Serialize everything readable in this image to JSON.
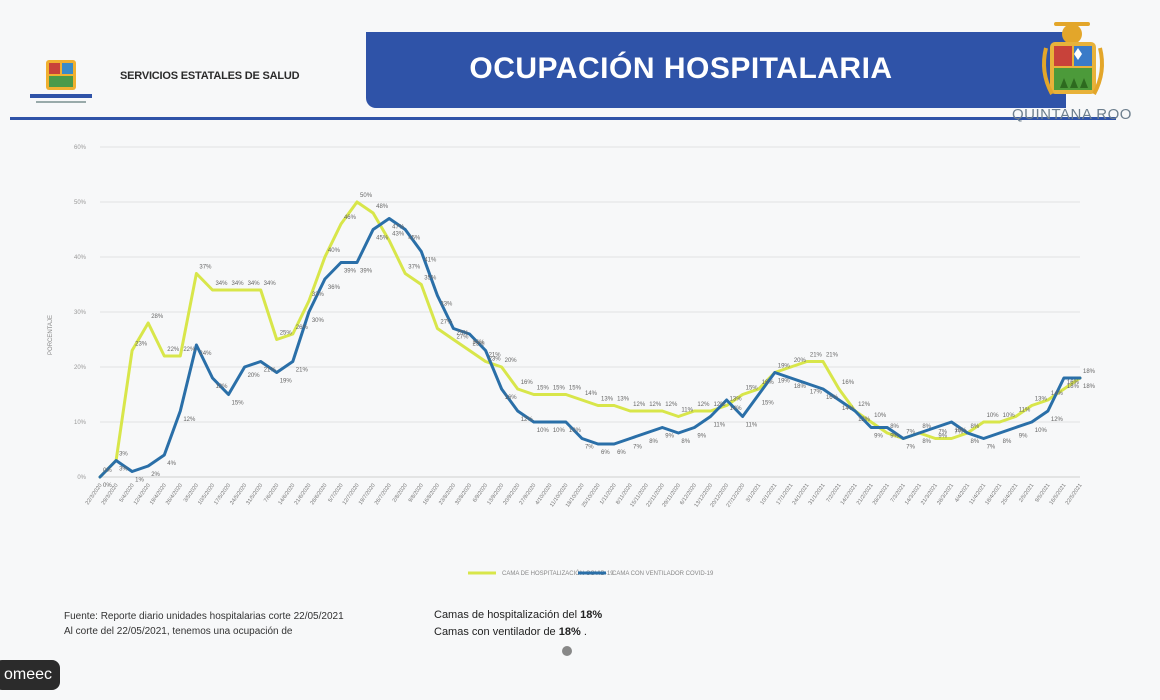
{
  "header": {
    "department": "SERVICIOS ESTATALES DE SALUD",
    "title": "OCUPACIÓN HOSPITALARIA",
    "state_name": "QUINTANA ROO",
    "brand_color": "#2f53a8"
  },
  "footer": {
    "source_line": "Fuente: Reporte diario unidades hospitalarias corte 22/05/2021",
    "cut_line": "Al corte del 22/05/2021, tenemos una ocupación de",
    "summary_1_prefix": "Camas de hospitalización del ",
    "summary_1_value": "18%",
    "summary_2_prefix": "Camas con ventilador de ",
    "summary_2_value": "18%",
    "summary_2_suffix": " ."
  },
  "overlay_tag": "omeec",
  "chart_data": {
    "type": "line",
    "ylabel": "PORCENTAJE",
    "ylim": [
      0,
      60
    ],
    "yticks": [
      "0%",
      "10%",
      "20%",
      "30%",
      "40%",
      "50%",
      "60%"
    ],
    "grid": true,
    "legend_position": "bottom",
    "x": [
      "22/3/2020",
      "29/3/2020",
      "5/4/2020",
      "12/4/2020",
      "19/4/2020",
      "26/4/2020",
      "3/5/2020",
      "10/5/2020",
      "17/5/2020",
      "24/5/2020",
      "31/5/2020",
      "7/6/2020",
      "14/6/2020",
      "21/6/2020",
      "28/6/2020",
      "5/7/2020",
      "12/7/2020",
      "19/7/2020",
      "26/7/2020",
      "2/8/2020",
      "9/8/2020",
      "16/8/2020",
      "23/8/2020",
      "30/8/2020",
      "6/9/2020",
      "13/9/2020",
      "20/9/2020",
      "27/9/2020",
      "4/10/2020",
      "11/10/2020",
      "18/10/2020",
      "25/10/2020",
      "1/11/2020",
      "8/11/2020",
      "15/11/2020",
      "22/11/2020",
      "29/11/2020",
      "6/12/2020",
      "13/12/2020",
      "20/12/2020",
      "27/12/2020",
      "3/1/2021",
      "10/1/2021",
      "17/1/2021",
      "24/1/2021",
      "31/1/2021",
      "7/2/2021",
      "14/2/2021",
      "21/2/2021",
      "28/2/2021",
      "7/3/2021",
      "14/3/2021",
      "21/3/2021",
      "28/3/2021",
      "4/4/2021",
      "11/4/2021",
      "18/4/2021",
      "25/4/2021",
      "2/5/2021",
      "9/5/2021",
      "16/5/2021",
      "22/5/2021"
    ],
    "series": [
      {
        "name": "CAMA DE HOSPITALIZACIÓN COVID-19",
        "color": "#d8e64a",
        "values": [
          0,
          3,
          23,
          28,
          22,
          22,
          37,
          34,
          34,
          34,
          34,
          25,
          26,
          32,
          40,
          46,
          50,
          48,
          43,
          37,
          35,
          27,
          25,
          23,
          21,
          20,
          16,
          15,
          15,
          15,
          14,
          13,
          13,
          12,
          12,
          12,
          11,
          12,
          12,
          13,
          15,
          16,
          19,
          20,
          21,
          21,
          16,
          12,
          10,
          8,
          7,
          8,
          7,
          7,
          8,
          10,
          10,
          11,
          13,
          14,
          16,
          18
        ],
        "labels": [
          "0%",
          "3%",
          "23%",
          "28%",
          "22%",
          "22%",
          "37%",
          "34%",
          "34%",
          "34%",
          "34%",
          "25%",
          "26%",
          "32%",
          "40%",
          "46%",
          "50%",
          "48%",
          "43%",
          "37%",
          "35%",
          "27%",
          "25%",
          "23%",
          "21%",
          "20%",
          "16%",
          "15%",
          "15%",
          "15%",
          "14%",
          "13%",
          "13%",
          "12%",
          "12%",
          "12%",
          "11%",
          "12%",
          "12%",
          "13%",
          "15%",
          "16%",
          "19%",
          "20%",
          "21%",
          "21%",
          "16%",
          "12%",
          "10%",
          "8%",
          "7%",
          "8%",
          "7%",
          "7%",
          "8%",
          "10%",
          "10%",
          "11%",
          "13%",
          "14%",
          "16%",
          "18%"
        ]
      },
      {
        "name": "CAMA CON VENTILADOR COVID-19",
        "color": "#2a6fa8",
        "values": [
          0,
          3,
          1,
          2,
          4,
          12,
          24,
          18,
          15,
          20,
          21,
          19,
          21,
          30,
          36,
          39,
          39,
          45,
          47,
          45,
          41,
          33,
          27,
          26,
          23,
          16,
          12,
          10,
          10,
          10,
          7,
          6,
          6,
          7,
          8,
          9,
          8,
          9,
          11,
          14,
          11,
          15,
          19,
          18,
          17,
          16,
          14,
          12,
          9,
          9,
          7,
          8,
          9,
          10,
          8,
          7,
          8,
          9,
          10,
          12,
          18,
          18
        ],
        "labels": [
          "0%",
          "3%",
          "1%",
          "2%",
          "4%",
          "12%",
          "24%",
          "18%",
          "15%",
          "20%",
          "21%",
          "19%",
          "21%",
          "30%",
          "36%",
          "39%",
          "39%",
          "45%",
          "47%",
          "45%",
          "41%",
          "33%",
          "27%",
          "26%",
          "23%",
          "16%",
          "12%",
          "10%",
          "10%",
          "10%",
          "7%",
          "6%",
          "6%",
          "7%",
          "8%",
          "9%",
          "8%",
          "9%",
          "11%",
          "14%",
          "11%",
          "15%",
          "19%",
          "18%",
          "17%",
          "16%",
          "14%",
          "12%",
          "9%",
          "9%",
          "7%",
          "8%",
          "9%",
          "10%",
          "8%",
          "7%",
          "8%",
          "9%",
          "10%",
          "12%",
          "18%",
          "18%"
        ]
      }
    ]
  }
}
